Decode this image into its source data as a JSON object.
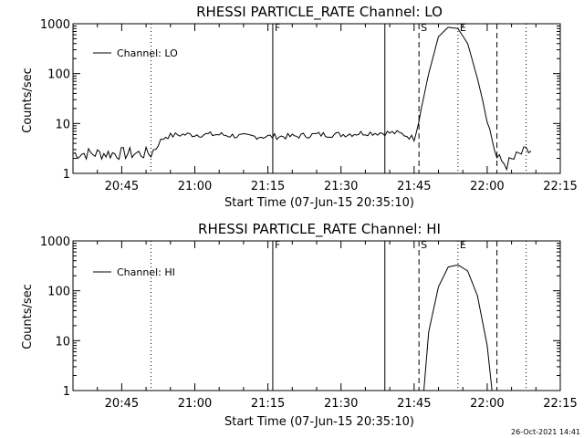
{
  "chart_data": [
    {
      "type": "line",
      "title": "RHESSI PARTICLE_RATE Channel: LO",
      "xlabel": "Start Time (07-Jun-15 20:35:10)",
      "ylabel": "Counts/sec",
      "yscale": "log",
      "ylim": [
        1,
        1000
      ],
      "xlim": [
        "20:35",
        "22:15"
      ],
      "xticks": [
        "20:45",
        "21:00",
        "21:15",
        "21:30",
        "21:45",
        "22:00",
        "22:15"
      ],
      "yticks": [
        "1",
        "10",
        "100",
        "1000"
      ],
      "legend": "top-left",
      "series": [
        {
          "name": "Channel: LO",
          "x": [
            "20:35",
            "20:40",
            "20:44",
            "20:48",
            "20:51",
            "20:53",
            "20:54",
            "20:57",
            "21:00",
            "21:05",
            "21:10",
            "21:15",
            "21:20",
            "21:25",
            "21:30",
            "21:35",
            "21:38",
            "21:41",
            "21:43",
            "21:45",
            "21:46",
            "21:48",
            "21:50",
            "21:52",
            "21:54",
            "21:56",
            "21:58",
            "22:00",
            "22:02",
            "22:04",
            "22:07",
            "22:09"
          ],
          "y": [
            2.5,
            2.5,
            2.5,
            2.5,
            2.5,
            4.5,
            5.5,
            6,
            6,
            6,
            5.5,
            5.5,
            5.5,
            6,
            6,
            6.5,
            6.5,
            6.5,
            6,
            5,
            12,
            100,
            550,
            850,
            800,
            400,
            80,
            12,
            2,
            1.5,
            2.5,
            2.8
          ]
        }
      ],
      "vlines": [
        {
          "x": "20:51",
          "style": "dotted"
        },
        {
          "x": "21:16",
          "style": "solid",
          "label": "F"
        },
        {
          "x": "21:39",
          "style": "solid"
        },
        {
          "x": "21:46",
          "style": "dashed",
          "label": "S"
        },
        {
          "x": "21:54",
          "style": "dotted",
          "label": "E"
        },
        {
          "x": "22:02",
          "style": "dashed"
        },
        {
          "x": "22:08",
          "style": "dotted"
        }
      ]
    },
    {
      "type": "line",
      "title": "RHESSI PARTICLE_RATE Channel: HI",
      "xlabel": "Start Time (07-Jun-15 20:35:10)",
      "ylabel": "Counts/sec",
      "yscale": "log",
      "ylim": [
        1,
        1000
      ],
      "xlim": [
        "20:35",
        "22:15"
      ],
      "xticks": [
        "20:45",
        "21:00",
        "21:15",
        "21:30",
        "21:45",
        "22:00",
        "22:15"
      ],
      "yticks": [
        "1",
        "10",
        "100",
        "1000"
      ],
      "legend": "top-left",
      "series": [
        {
          "name": "Channel: HI",
          "x": [
            "21:47",
            "21:48",
            "21:50",
            "21:52",
            "21:54",
            "21:56",
            "21:58",
            "22:00",
            "22:01"
          ],
          "y": [
            1,
            15,
            120,
            300,
            330,
            250,
            80,
            8,
            1
          ]
        }
      ],
      "vlines": [
        {
          "x": "20:51",
          "style": "dotted"
        },
        {
          "x": "21:16",
          "style": "solid",
          "label": "F"
        },
        {
          "x": "21:39",
          "style": "solid"
        },
        {
          "x": "21:46",
          "style": "dashed",
          "label": "S"
        },
        {
          "x": "21:54",
          "style": "dotted",
          "label": "E"
        },
        {
          "x": "22:02",
          "style": "dashed"
        },
        {
          "x": "22:08",
          "style": "dotted"
        }
      ]
    }
  ],
  "footer": {
    "timestamp": "26-Oct-2021 14:41"
  }
}
